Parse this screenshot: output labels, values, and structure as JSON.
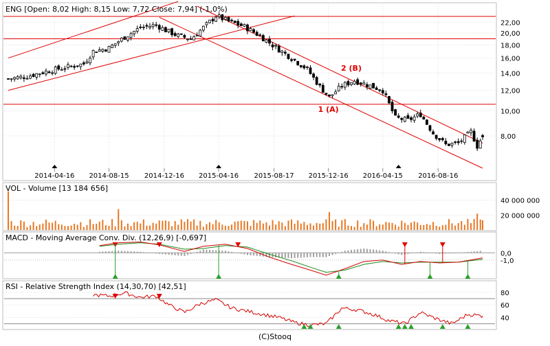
{
  "colors": {
    "frame": "#bcbcbc",
    "grid": "#dcdcdc",
    "candle": "#000000",
    "trendline": "#e00000",
    "volume": "#e87722",
    "macd_line": "#d40000",
    "signal_line": "#1a8a1a",
    "histogram": "#a0a0a0",
    "sell_marker": "#e00000",
    "buy_marker": "#2aa02a",
    "annotation": "#e00000"
  },
  "footer": {
    "credit": "(C)Stooq"
  },
  "chart_data": [
    {
      "type": "candlestick",
      "ticker": "ENG",
      "header": "ENG [Open: 8,02  High: 8,15  Low: 7,72  Close: 7,94] (-1,0%)",
      "x_tick_labels": [
        "2014-04-16",
        "2014-08-15",
        "2014-12-16",
        "2015-04-16",
        "2015-08-17",
        "2015-12-16",
        "2016-04-15",
        "2016-08-16"
      ],
      "x_tick_dates": [
        "2014-04-16",
        "2014-08-15",
        "2014-12-16",
        "2015-04-16",
        "2015-08-17",
        "2015-12-16",
        "2016-04-15",
        "2016-08-16"
      ],
      "xlim": [
        "2014-01-03",
        "2016-11-23"
      ],
      "y_scale": "log",
      "y_tick_labels": [
        "8,00",
        "10,00",
        "12,00",
        "14,00",
        "16,00",
        "18,00",
        "20,00",
        "22,00"
      ],
      "y_ticks": [
        8,
        10,
        12,
        14,
        16,
        18,
        20,
        22
      ],
      "ylim": [
        6.0,
        25.4
      ],
      "last": {
        "open": 8.02,
        "high": 8.15,
        "low": 7.72,
        "close": 7.94,
        "change_pct": -1.0
      },
      "weekly_closes": [
        {
          "x": "2014-01-03",
          "close": 13.3
        },
        {
          "x": "2014-02-14",
          "close": 13.6
        },
        {
          "x": "2014-03-28",
          "close": 14.2
        },
        {
          "x": "2014-05-09",
          "close": 14.7
        },
        {
          "x": "2014-06-20",
          "close": 15.2
        },
        {
          "x": "2014-07-11",
          "close": 17.0
        },
        {
          "x": "2014-08-15",
          "close": 17.5
        },
        {
          "x": "2014-09-19",
          "close": 19.3
        },
        {
          "x": "2014-10-24",
          "close": 21.0
        },
        {
          "x": "2014-11-28",
          "close": 21.5
        },
        {
          "x": "2014-12-19",
          "close": 20.5
        },
        {
          "x": "2015-01-16",
          "close": 19.5
        },
        {
          "x": "2015-02-13",
          "close": 19.0
        },
        {
          "x": "2015-03-13",
          "close": 21.0
        },
        {
          "x": "2015-04-10",
          "close": 23.3
        },
        {
          "x": "2015-05-08",
          "close": 22.2
        },
        {
          "x": "2015-06-12",
          "close": 21.2
        },
        {
          "x": "2015-07-17",
          "close": 19.5
        },
        {
          "x": "2015-08-21",
          "close": 17.6
        },
        {
          "x": "2015-09-25",
          "close": 16.0
        },
        {
          "x": "2015-10-30",
          "close": 14.5
        },
        {
          "x": "2015-11-27",
          "close": 12.4
        },
        {
          "x": "2015-12-18",
          "close": 11.3
        },
        {
          "x": "2016-01-15",
          "close": 12.5
        },
        {
          "x": "2016-02-12",
          "close": 13.1
        },
        {
          "x": "2016-03-18",
          "close": 12.5
        },
        {
          "x": "2016-04-15",
          "close": 12.0
        },
        {
          "x": "2016-05-13",
          "close": 9.4
        },
        {
          "x": "2016-06-10",
          "close": 9.2
        },
        {
          "x": "2016-07-08",
          "close": 9.7
        },
        {
          "x": "2016-08-05",
          "close": 8.2
        },
        {
          "x": "2016-09-02",
          "close": 7.4
        },
        {
          "x": "2016-09-30",
          "close": 7.5
        },
        {
          "x": "2016-10-28",
          "close": 8.3
        },
        {
          "x": "2016-11-11",
          "close": 7.3
        },
        {
          "x": "2016-11-23",
          "close": 7.94
        }
      ],
      "horizontal_lines": [
        23.2,
        19.0,
        10.6
      ],
      "trend_lines": [
        {
          "from": {
            "x": "2014-01-03",
            "y": 16.0
          },
          "to": {
            "x": "2015-01-16",
            "y": 26.5
          }
        },
        {
          "from": {
            "x": "2014-01-03",
            "y": 12.0
          },
          "to": {
            "x": "2015-10-02",
            "y": 23.3
          }
        },
        {
          "from": {
            "x": "2014-12-05",
            "y": 23.0
          },
          "to": {
            "x": "2016-11-23",
            "y": 6.0
          }
        },
        {
          "from": {
            "x": "2015-02-27",
            "y": 25.4
          },
          "to": {
            "x": "2016-11-23",
            "y": 7.5
          }
        }
      ],
      "annotations": [
        {
          "text": "1 (A)",
          "x": "2015-12-16",
          "y": 9.9
        },
        {
          "text": "2 (B)",
          "x": "2016-02-05",
          "y": 14.3
        }
      ],
      "markers": [
        "2014-04-16",
        "2015-04-16",
        "2016-05-20"
      ]
    },
    {
      "type": "bar",
      "name": "VOL - Volume",
      "header": "VOL - Volume [13 184 656]",
      "last": 13184656,
      "y_tick_labels": [
        "20 000 000",
        "40 000 000"
      ],
      "y_ticks": [
        20000000,
        40000000
      ],
      "ylim": [
        0,
        60000000
      ],
      "spikes": [
        {
          "x": "2014-01-03",
          "value": 52000000
        },
        {
          "x": "2014-09-05",
          "value": 28000000
        },
        {
          "x": "2015-12-18",
          "value": 24000000
        },
        {
          "x": "2016-11-11",
          "value": 22000000
        }
      ]
    },
    {
      "type": "line",
      "name": "MACD - Moving Average Conv. Div.",
      "header": "MACD - Moving Average Conv. Div. (12,26,9) [-0,697]",
      "params": [
        12,
        26,
        9
      ],
      "last": -0.697,
      "y_tick_labels": [
        "0,0",
        "-1,0"
      ],
      "y_ticks": [
        0,
        -1
      ],
      "ylim": [
        -3.5,
        2.6
      ],
      "series": [
        {
          "values": [
            {
              "x": "2014-07-25",
              "y": 1.0
            },
            {
              "x": "2014-09-05",
              "y": 1.4
            },
            {
              "x": "2014-10-24",
              "y": 1.5
            },
            {
              "x": "2014-12-05",
              "y": 1.1
            },
            {
              "x": "2015-01-30",
              "y": 0.2
            },
            {
              "x": "2015-03-13",
              "y": 0.9
            },
            {
              "x": "2015-05-01",
              "y": 1.2
            },
            {
              "x": "2015-06-19",
              "y": 0.6
            },
            {
              "x": "2015-08-07",
              "y": -0.6
            },
            {
              "x": "2015-09-25",
              "y": -1.6
            },
            {
              "x": "2015-11-06",
              "y": -2.4
            },
            {
              "x": "2015-12-11",
              "y": -3.1
            },
            {
              "x": "2016-01-22",
              "y": -2.2
            },
            {
              "x": "2016-03-04",
              "y": -1.2
            },
            {
              "x": "2016-04-15",
              "y": -1.0
            },
            {
              "x": "2016-05-27",
              "y": -1.6
            },
            {
              "x": "2016-07-08",
              "y": -1.2
            },
            {
              "x": "2016-08-19",
              "y": -1.4
            },
            {
              "x": "2016-09-30",
              "y": -1.3
            },
            {
              "x": "2016-11-23",
              "y": -0.7
            }
          ]
        },
        {
          "values": [
            {
              "x": "2014-07-25",
              "y": 0.9
            },
            {
              "x": "2014-09-05",
              "y": 1.2
            },
            {
              "x": "2014-10-24",
              "y": 1.4
            },
            {
              "x": "2014-12-05",
              "y": 1.2
            },
            {
              "x": "2015-01-30",
              "y": 0.5
            },
            {
              "x": "2015-03-13",
              "y": 0.6
            },
            {
              "x": "2015-05-01",
              "y": 1.0
            },
            {
              "x": "2015-06-19",
              "y": 0.8
            },
            {
              "x": "2015-08-07",
              "y": -0.2
            },
            {
              "x": "2015-09-25",
              "y": -1.1
            },
            {
              "x": "2015-11-06",
              "y": -2.0
            },
            {
              "x": "2015-12-11",
              "y": -2.7
            },
            {
              "x": "2016-01-22",
              "y": -2.4
            },
            {
              "x": "2016-03-04",
              "y": -1.6
            },
            {
              "x": "2016-04-15",
              "y": -1.2
            },
            {
              "x": "2016-05-27",
              "y": -1.4
            },
            {
              "x": "2016-07-08",
              "y": -1.3
            },
            {
              "x": "2016-08-19",
              "y": -1.3
            },
            {
              "x": "2016-09-30",
              "y": -1.3
            },
            {
              "x": "2016-11-23",
              "y": -0.9
            }
          ]
        }
      ],
      "sell_signals": [
        "2014-08-29",
        "2014-12-05",
        "2015-05-29",
        "2016-06-03",
        "2016-08-26"
      ],
      "buy_signals": [
        "2014-08-29",
        "2015-04-16",
        "2016-01-08",
        "2016-07-29",
        "2016-10-21"
      ]
    },
    {
      "type": "line",
      "name": "RSI - Relative Strength Index",
      "header": "RSI - Relative Strength Index (14,30,70) [42,51]",
      "params": [
        14,
        30,
        70
      ],
      "last": 42.51,
      "y_tick_labels": [
        "40",
        "60",
        "80"
      ],
      "y_ticks": [
        40,
        60,
        80
      ],
      "ylim": [
        22,
        95
      ],
      "values": [
        {
          "x": "2014-07-11",
          "y": 76
        },
        {
          "x": "2014-08-15",
          "y": 74
        },
        {
          "x": "2014-09-19",
          "y": 79
        },
        {
          "x": "2014-10-24",
          "y": 72
        },
        {
          "x": "2014-11-28",
          "y": 74
        },
        {
          "x": "2014-12-26",
          "y": 60
        },
        {
          "x": "2015-01-30",
          "y": 48
        },
        {
          "x": "2015-03-06",
          "y": 62
        },
        {
          "x": "2015-04-10",
          "y": 68
        },
        {
          "x": "2015-05-15",
          "y": 55
        },
        {
          "x": "2015-06-19",
          "y": 50
        },
        {
          "x": "2015-07-24",
          "y": 45
        },
        {
          "x": "2015-08-28",
          "y": 40
        },
        {
          "x": "2015-10-02",
          "y": 32
        },
        {
          "x": "2015-11-06",
          "y": 28
        },
        {
          "x": "2015-12-11",
          "y": 30
        },
        {
          "x": "2016-01-15",
          "y": 55
        },
        {
          "x": "2016-02-19",
          "y": 52
        },
        {
          "x": "2016-03-25",
          "y": 45
        },
        {
          "x": "2016-04-29",
          "y": 35
        },
        {
          "x": "2016-06-03",
          "y": 30
        },
        {
          "x": "2016-07-08",
          "y": 48
        },
        {
          "x": "2016-08-12",
          "y": 38
        },
        {
          "x": "2016-09-16",
          "y": 30
        },
        {
          "x": "2016-10-21",
          "y": 45
        },
        {
          "x": "2016-11-23",
          "y": 42.5
        }
      ],
      "sell_signals": [
        "2014-08-29",
        "2014-12-05"
      ],
      "buy_signals": [
        "2015-10-23",
        "2015-11-06",
        "2016-01-08",
        "2016-05-20",
        "2016-06-03",
        "2016-06-17",
        "2016-08-26",
        "2016-10-21"
      ]
    }
  ]
}
